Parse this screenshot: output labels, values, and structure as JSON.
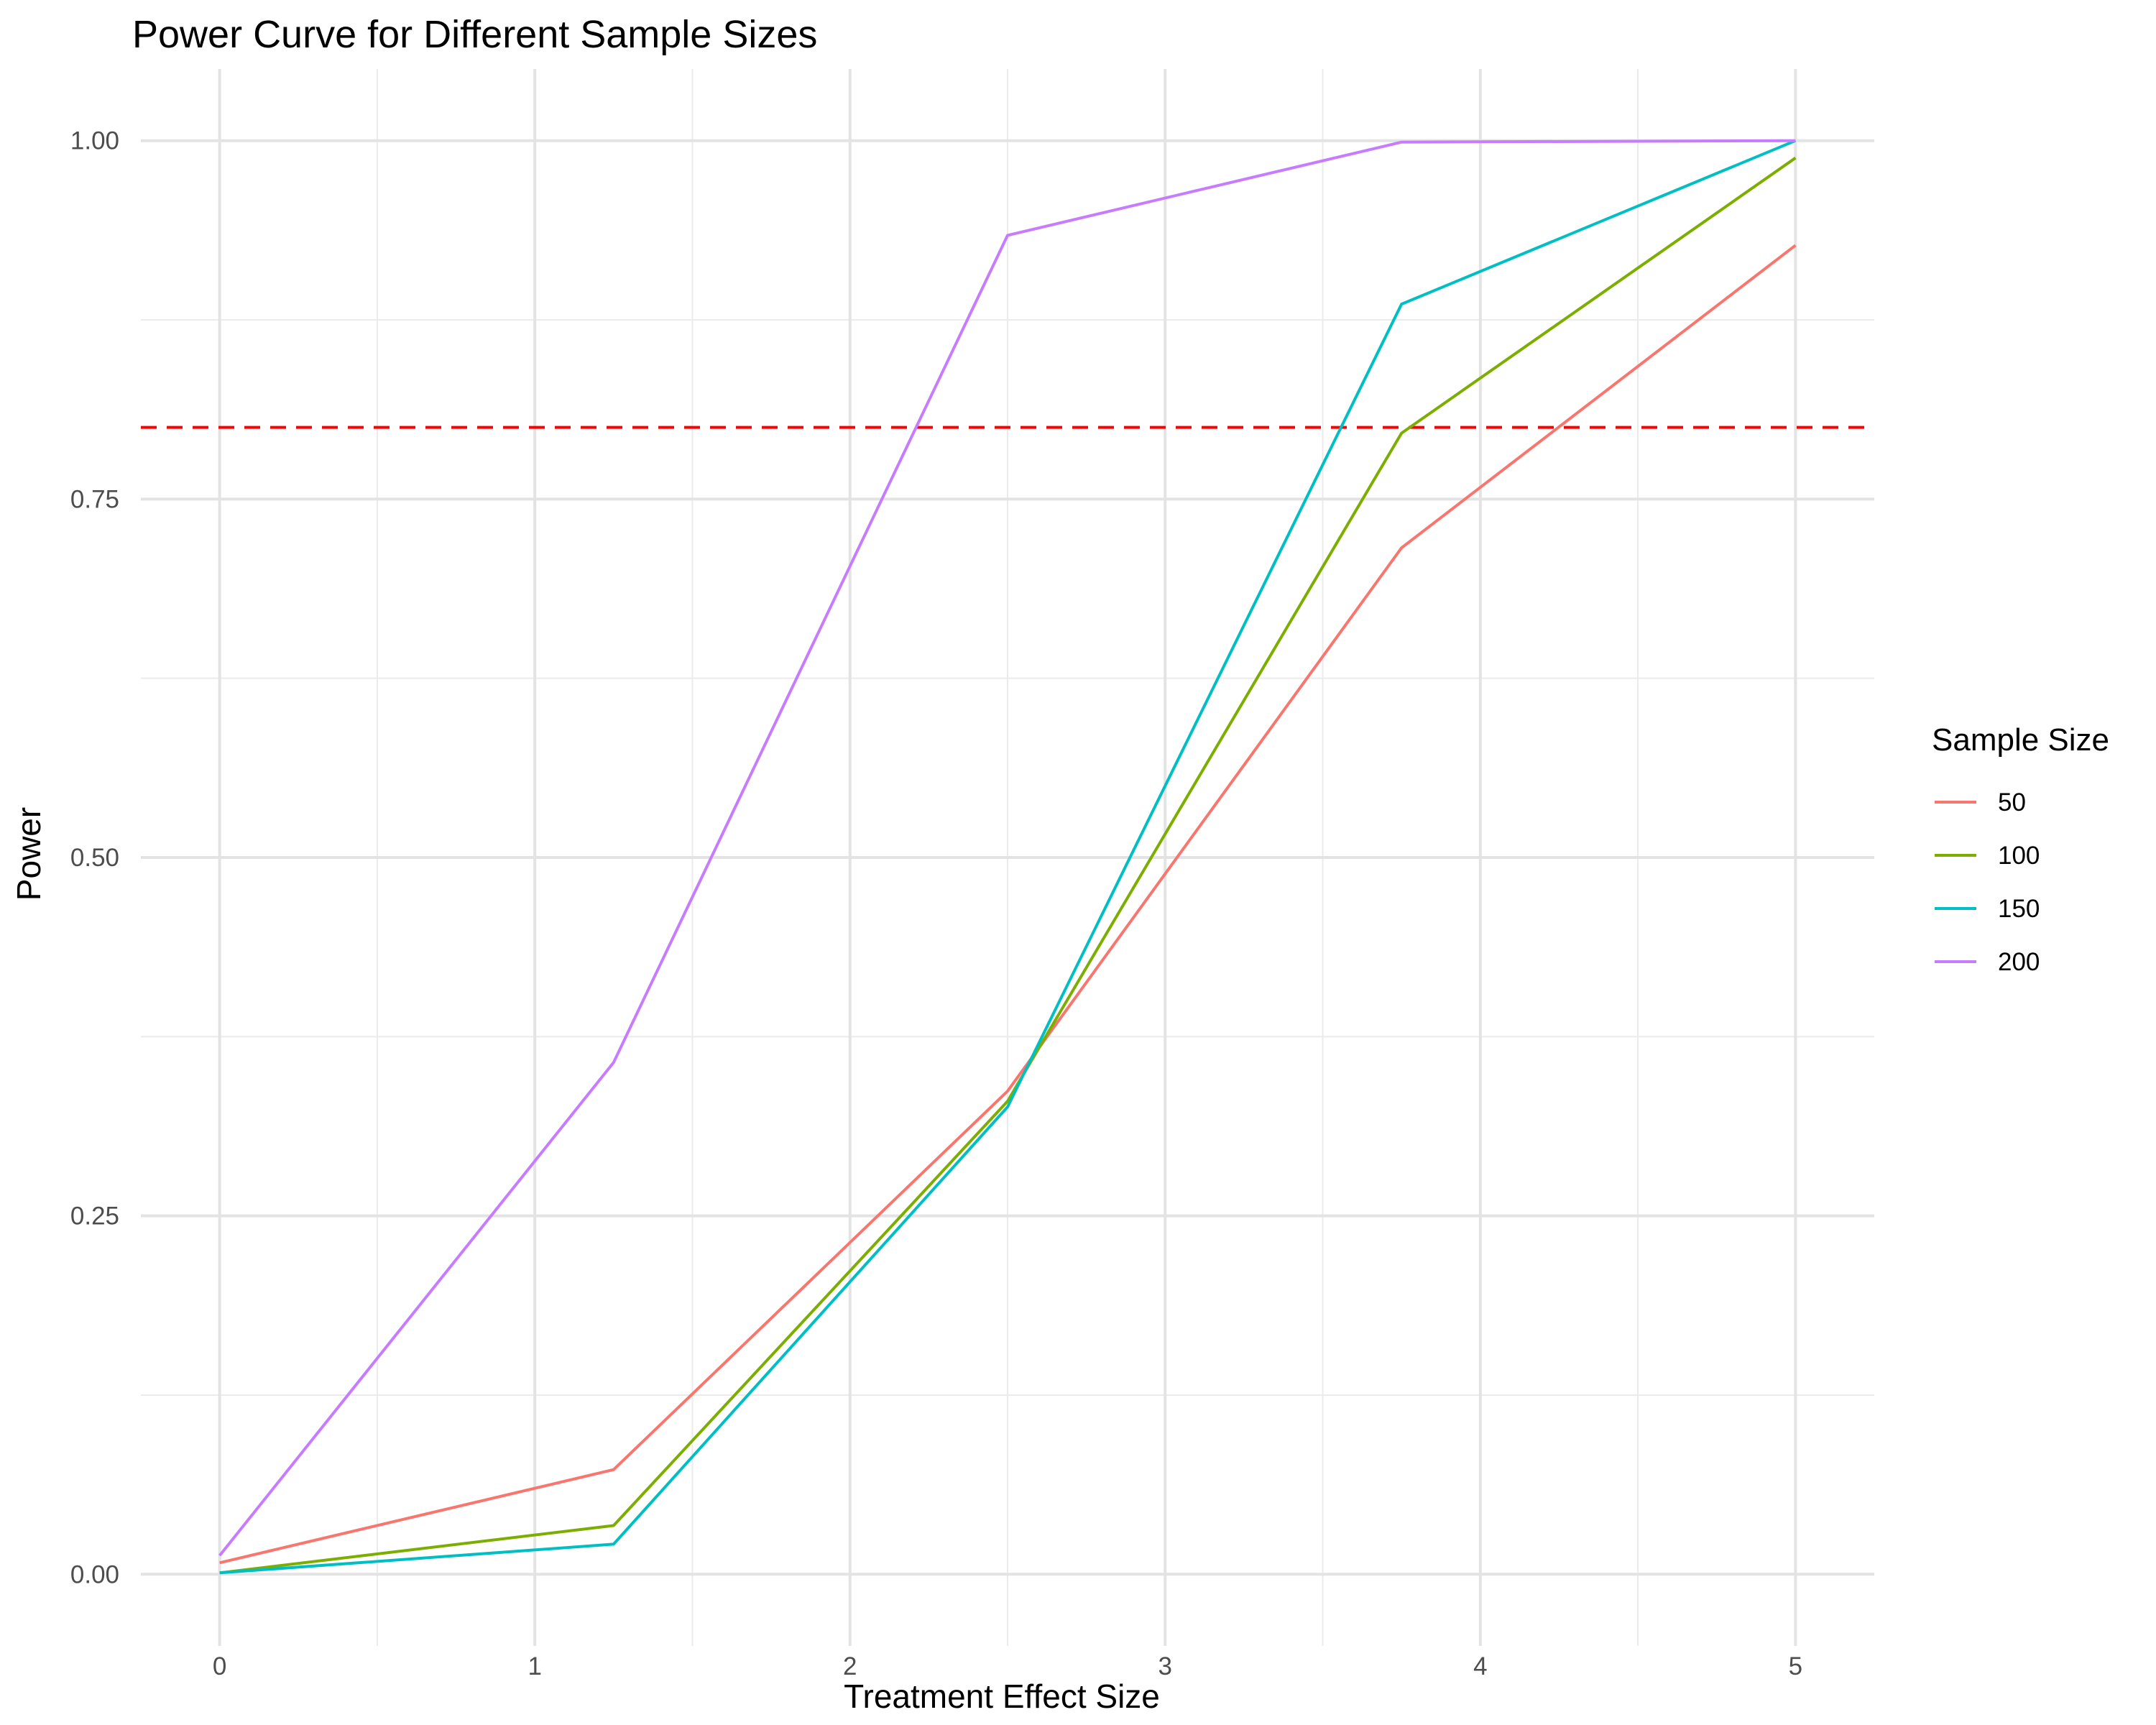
{
  "chart_data": {
    "type": "line",
    "title": "Power Curve for Different Sample Sizes",
    "xlabel": "Treatment Effect Size",
    "ylabel": "Power",
    "xlim": [
      -0.25,
      5.25
    ],
    "ylim": [
      -0.05,
      1.05
    ],
    "x_ticks": [
      0,
      1,
      2,
      3,
      4,
      5
    ],
    "x_tick_labels": [
      "0",
      "1",
      "2",
      "3",
      "4",
      "5"
    ],
    "y_ticks": [
      0,
      0.25,
      0.5,
      0.75,
      1.0
    ],
    "y_tick_labels": [
      "0.00",
      "0.25",
      "0.50",
      "0.75",
      "1.00"
    ],
    "grid": true,
    "x": [
      0,
      1.25,
      2.5,
      3.75,
      5
    ],
    "series": [
      {
        "name": "50",
        "color": "#F8766D",
        "values": [
          0.008,
          0.073,
          0.337,
          0.716,
          0.927
        ]
      },
      {
        "name": "100",
        "color": "#7CAE00",
        "values": [
          0.001,
          0.034,
          0.33,
          0.796,
          0.988
        ]
      },
      {
        "name": "150",
        "color": "#00BFC4",
        "values": [
          0.001,
          0.021,
          0.326,
          0.886,
          1.0
        ]
      },
      {
        "name": "200",
        "color": "#C77CFF",
        "values": [
          0.013,
          0.357,
          0.934,
          0.999,
          1.0
        ]
      }
    ],
    "reference_line": {
      "y": 0.8,
      "color": "#FF0000",
      "style": "dashed"
    },
    "legend": {
      "title": "Sample Size",
      "position": "right"
    }
  }
}
